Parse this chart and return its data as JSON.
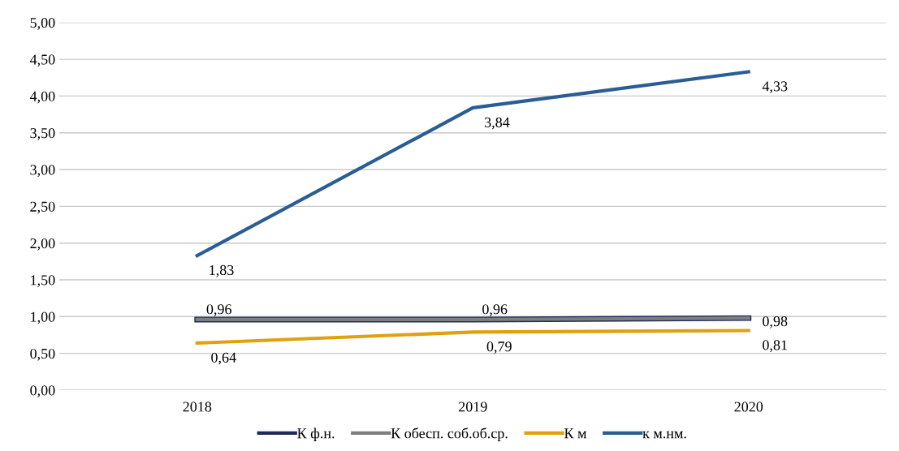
{
  "chart_data": {
    "type": "line",
    "categories": [
      "2018",
      "2019",
      "2020"
    ],
    "series": [
      {
        "name": "К ф.н.",
        "color": "#1f2a5c",
        "values": [
          0.96,
          0.96,
          0.98
        ],
        "value_labels": [
          null,
          null,
          null
        ]
      },
      {
        "name": "К обесп. соб.об.ср.",
        "color": "#7f7f7f",
        "values": [
          0.96,
          0.96,
          0.98
        ],
        "value_labels": [
          "0,96",
          "0,96",
          "0,98"
        ]
      },
      {
        "name": "К м",
        "color": "#e0a10f",
        "values": [
          0.64,
          0.79,
          0.81
        ],
        "value_labels": [
          "0,64",
          "0,79",
          "0,81"
        ]
      },
      {
        "name": "к м.нм.",
        "color": "#2a5d94",
        "values": [
          1.83,
          3.84,
          4.33
        ],
        "value_labels": [
          "1,83",
          "3,84",
          "4,33"
        ]
      }
    ],
    "ylim": [
      0,
      5
    ],
    "yticks": [
      {
        "value": 0,
        "label": "0,00"
      },
      {
        "value": 0.5,
        "label": "0,50"
      },
      {
        "value": 1,
        "label": "1,00"
      },
      {
        "value": 1.5,
        "label": "1,50"
      },
      {
        "value": 2,
        "label": "2,00"
      },
      {
        "value": 2.5,
        "label": "2,50"
      },
      {
        "value": 3,
        "label": "3,00"
      },
      {
        "value": 3.5,
        "label": "3,50"
      },
      {
        "value": 4,
        "label": "4,00"
      },
      {
        "value": 4.5,
        "label": "4,50"
      },
      {
        "value": 5,
        "label": "5,00"
      }
    ],
    "grid": "y",
    "legend": "bottom",
    "marker": "none",
    "line_style": "solid"
  }
}
